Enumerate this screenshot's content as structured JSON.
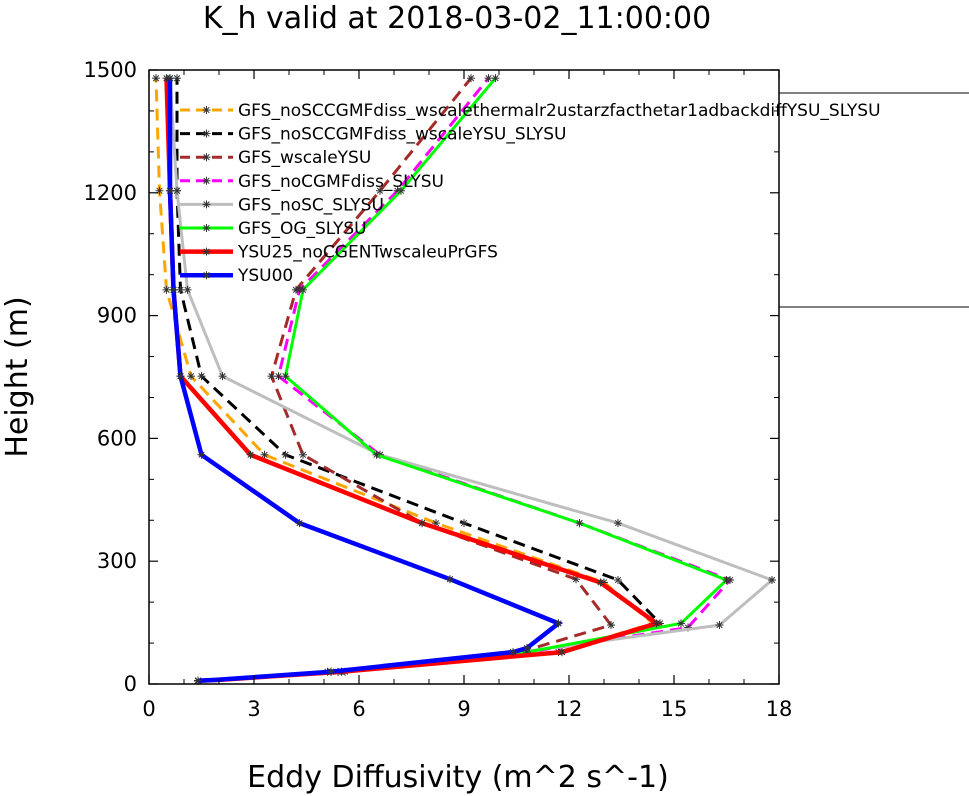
{
  "chart_data": {
    "type": "line",
    "title": "K_h valid at 2018-03-02_11:00:00",
    "xlabel": "Eddy Diffusivity (m^2 s^-1)",
    "ylabel": "Height (m)",
    "xlim": [
      0,
      18
    ],
    "ylim": [
      0,
      1500
    ],
    "x_ticks": [
      "0",
      "3",
      "6",
      "9",
      "12",
      "15",
      "18"
    ],
    "y_ticks": [
      "0",
      "300",
      "600",
      "900",
      "1200",
      "1500"
    ],
    "x_tick_values": [
      0,
      3,
      6,
      9,
      12,
      15,
      18
    ],
    "y_tick_values": [
      0,
      300,
      600,
      900,
      1200,
      1500
    ],
    "grid": false,
    "legend_position": "top-right",
    "series": [
      {
        "name": "GFS_noSCCGMFdiss_wscalethermalr2ustarzfacthetar1adbackdiffYSU_SLYSU",
        "color": "#ffa500",
        "dash": "dashed",
        "points": [
          [
            1.4,
            8
          ],
          [
            2.0,
            10
          ],
          [
            5.4,
            30
          ],
          [
            11.7,
            78
          ],
          [
            14.4,
            148
          ],
          [
            13.0,
            248
          ],
          [
            8.2,
            393
          ],
          [
            3.3,
            560
          ],
          [
            1.2,
            752
          ],
          [
            0.5,
            963
          ],
          [
            0.3,
            1205
          ],
          [
            0.2,
            1480
          ]
        ]
      },
      {
        "name": "GFS_noSCCGMFdiss_wscaleYSU_SLYSU",
        "color": "#000000",
        "dash": "dashed",
        "points": [
          [
            1.4,
            8
          ],
          [
            2.0,
            10
          ],
          [
            5.6,
            30
          ],
          [
            11.8,
            78
          ],
          [
            14.6,
            148
          ],
          [
            13.4,
            254
          ],
          [
            9.0,
            393
          ],
          [
            3.9,
            560
          ],
          [
            1.5,
            752
          ],
          [
            0.9,
            963
          ],
          [
            0.8,
            1205
          ],
          [
            0.8,
            1480
          ]
        ]
      },
      {
        "name": "GFS_wscaleYSU",
        "color": "#a52a2a",
        "dash": "dashed",
        "points": [
          [
            1.4,
            8
          ],
          [
            1.9,
            10
          ],
          [
            5.2,
            30
          ],
          [
            10.6,
            78
          ],
          [
            13.2,
            144
          ],
          [
            12.2,
            256
          ],
          [
            7.8,
            393
          ],
          [
            4.4,
            560
          ],
          [
            3.5,
            752
          ],
          [
            4.2,
            963
          ],
          [
            6.6,
            1205
          ],
          [
            9.2,
            1480
          ]
        ]
      },
      {
        "name": "GFS_noCGMFdiss_SLYSU",
        "color": "#ff00ff",
        "dash": "dashed",
        "points": [
          [
            1.4,
            8
          ],
          [
            1.9,
            10
          ],
          [
            5.2,
            30
          ],
          [
            10.8,
            78
          ],
          [
            15.4,
            138
          ],
          [
            16.6,
            254
          ],
          [
            12.3,
            393
          ],
          [
            6.6,
            560
          ],
          [
            3.7,
            752
          ],
          [
            4.3,
            963
          ],
          [
            7.1,
            1205
          ],
          [
            9.7,
            1480
          ]
        ]
      },
      {
        "name": "GFS_noSC_SLYSU",
        "color": "#bebebe",
        "dash": "solid",
        "points": [
          [
            1.4,
            8
          ],
          [
            1.9,
            10
          ],
          [
            5.1,
            30
          ],
          [
            10.6,
            78
          ],
          [
            16.3,
            144
          ],
          [
            17.8,
            254
          ],
          [
            13.4,
            393
          ],
          [
            6.6,
            560
          ],
          [
            2.1,
            752
          ],
          [
            1.1,
            963
          ],
          [
            0.8,
            1205
          ],
          [
            0.6,
            1480
          ]
        ]
      },
      {
        "name": "GFS_OG_SLYSU",
        "color": "#00ff00",
        "dash": "solid",
        "points": [
          [
            1.4,
            8
          ],
          [
            1.9,
            10
          ],
          [
            5.2,
            30
          ],
          [
            10.8,
            78
          ],
          [
            15.2,
            148
          ],
          [
            16.5,
            254
          ],
          [
            12.3,
            393
          ],
          [
            6.5,
            560
          ],
          [
            3.9,
            752
          ],
          [
            4.4,
            963
          ],
          [
            7.2,
            1205
          ],
          [
            9.9,
            1480
          ]
        ]
      },
      {
        "name": "YSU25_noCGENTwscaleuPrGFS",
        "color": "#ff0000",
        "dash": "solid",
        "points": [
          [
            1.4,
            8
          ],
          [
            2.0,
            10
          ],
          [
            5.5,
            30
          ],
          [
            11.8,
            78
          ],
          [
            14.5,
            148
          ],
          [
            12.9,
            248
          ],
          [
            7.8,
            393
          ],
          [
            2.9,
            560
          ],
          [
            0.9,
            752
          ],
          [
            0.7,
            963
          ],
          [
            0.6,
            1205
          ],
          [
            0.5,
            1480
          ]
        ]
      },
      {
        "name": "YSU00",
        "color": "#0000ff",
        "dash": "solid",
        "points": [
          [
            1.4,
            8
          ],
          [
            1.9,
            10
          ],
          [
            5.2,
            30
          ],
          [
            10.4,
            78
          ],
          [
            10.8,
            88
          ],
          [
            11.7,
            148
          ],
          [
            8.6,
            256
          ],
          [
            4.3,
            393
          ],
          [
            1.5,
            560
          ],
          [
            0.9,
            752
          ],
          [
            0.7,
            963
          ],
          [
            0.6,
            1205
          ],
          [
            0.6,
            1480
          ]
        ]
      }
    ]
  }
}
